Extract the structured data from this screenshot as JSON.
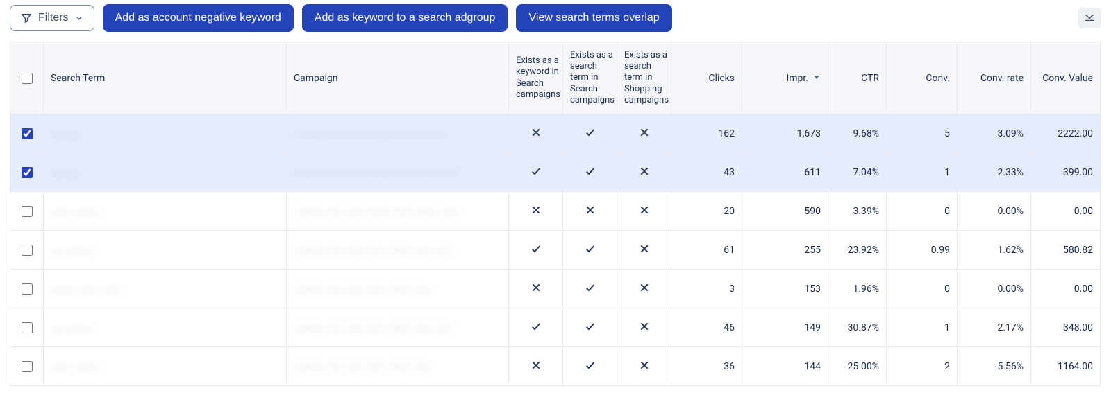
{
  "toolbar": {
    "filters_label": "Filters",
    "buttons": [
      "Add as account negative keyword",
      "Add as keyword to a search adgroup",
      "View search terms overlap"
    ]
  },
  "table": {
    "columns": {
      "search_term": "Search Term",
      "campaign": "Campaign",
      "exists_keyword": "Exists as a keyword in Search campaigns",
      "exists_search": "Exists as a search term in Search campaigns",
      "exists_shopping": "Exists as a search term in Shopping campaigns",
      "clicks": "Clicks",
      "impr": "Impr.",
      "ctr": "CTR",
      "conv": "Conv.",
      "conv_rate": "Conv. rate",
      "conv_value": "Conv. Value"
    },
    "sort_column": "impr",
    "sort_dir": "desc",
    "rows": [
      {
        "selected": true,
        "search_term": "…… ……",
        "campaign": "… …………… ……… ………\n…………… ……… ………",
        "exists_keyword": false,
        "exists_search": true,
        "exists_shopping": false,
        "clicks": "162",
        "impr": "1,673",
        "ctr": "9.68%",
        "conv": "5",
        "conv_rate": "3.09%",
        "conv_value": "2222.00"
      },
      {
        "selected": true,
        "search_term": "…… ……",
        "campaign": "…………… ……… ………\n…………… ……… ……… ………",
        "exists_keyword": true,
        "exists_search": true,
        "exists_shopping": false,
        "clicks": "43",
        "impr": "611",
        "ctr": "7.04%",
        "conv": "1",
        "conv_rate": "2.33%",
        "conv_value": "399.00"
      },
      {
        "selected": false,
        "search_term": "……… …………",
        "campaign": "…………… ……… ……… ………… ………\n………… ………",
        "exists_keyword": false,
        "exists_search": false,
        "exists_shopping": false,
        "clicks": "20",
        "impr": "590",
        "ctr": "3.39%",
        "conv": "0",
        "conv_rate": "0.00%",
        "conv_value": "0.00"
      },
      {
        "selected": false,
        "search_term": "…… …………",
        "campaign": "…………… ……… ……… ………\n………… ……… ………",
        "exists_keyword": true,
        "exists_search": true,
        "exists_shopping": false,
        "clicks": "61",
        "impr": "255",
        "ctr": "23.92%",
        "conv": "0.99",
        "conv_rate": "1.62%",
        "conv_value": "580.82"
      },
      {
        "selected": false,
        "search_term": "………… ……… ………",
        "campaign": "…………… ……… ……… ………\n………… ………",
        "exists_keyword": false,
        "exists_search": true,
        "exists_shopping": false,
        "clicks": "3",
        "impr": "153",
        "ctr": "1.96%",
        "conv": "0",
        "conv_rate": "0.00%",
        "conv_value": "0.00"
      },
      {
        "selected": false,
        "search_term": "…… …………",
        "campaign": "…………… ……… ……… ………\n………… ……… ………",
        "exists_keyword": true,
        "exists_search": true,
        "exists_shopping": false,
        "clicks": "46",
        "impr": "149",
        "ctr": "30.87%",
        "conv": "1",
        "conv_rate": "2.17%",
        "conv_value": "348.00"
      },
      {
        "selected": false,
        "search_term": "……… …………",
        "campaign": "…………… ……… ……… ………\n………… ………",
        "exists_keyword": false,
        "exists_search": true,
        "exists_shopping": false,
        "clicks": "36",
        "impr": "144",
        "ctr": "25.00%",
        "conv": "2",
        "conv_rate": "5.56%",
        "conv_value": "1164.00"
      }
    ]
  },
  "colors": {
    "primary": "#2543b8",
    "header_bg": "#f5f7fa",
    "selected_bg": "#e6ecfb",
    "border": "#e6e9ef",
    "text": "#1a2a4a"
  }
}
